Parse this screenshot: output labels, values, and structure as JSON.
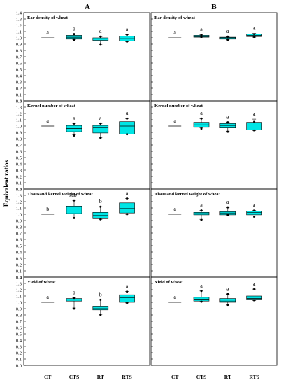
{
  "figure": {
    "column_labels": [
      "A",
      "B"
    ],
    "y_axis_title": "Equivalent ratios",
    "x_categories": [
      "CT",
      "CTS",
      "RT",
      "RTS"
    ],
    "box_fill": "#00e5e5"
  },
  "chart_data": [
    {
      "type": "box",
      "column": "A",
      "title": "Ear density of wheat",
      "categories": [
        "CT",
        "CTS",
        "RT",
        "RTS"
      ],
      "ylim": [
        0.0,
        1.4
      ],
      "yticks": [
        0.0,
        0.1,
        0.2,
        0.3,
        0.4,
        0.5,
        0.6,
        0.7,
        0.8,
        0.9,
        1.0,
        1.1,
        1.2,
        1.3,
        1.4
      ],
      "boxes": [
        {
          "category": "CT",
          "line": 1.0,
          "letter": "a"
        },
        {
          "category": "CTS",
          "whisker_low": 0.97,
          "q1": 0.98,
          "median": 1.01,
          "q3": 1.04,
          "whisker_high": 1.06,
          "outliers": [
            0.97,
            1.06
          ],
          "letter": "a"
        },
        {
          "category": "RT",
          "whisker_low": 0.89,
          "q1": 0.96,
          "median": 0.99,
          "q3": 1.0,
          "whisker_high": 1.02,
          "outliers": [
            0.89,
            1.02
          ],
          "letter": "a"
        },
        {
          "category": "RTS",
          "whisker_low": 0.94,
          "q1": 0.95,
          "median": 0.99,
          "q3": 1.03,
          "whisker_high": 1.05,
          "outliers": [
            0.94,
            1.05
          ],
          "letter": "a"
        }
      ]
    },
    {
      "type": "box",
      "column": "B",
      "title": "Ear density of wheat",
      "categories": [
        "CT",
        "CTS",
        "RT",
        "RTS"
      ],
      "ylim": [
        0.0,
        1.4
      ],
      "yticks": [
        0.0,
        0.1,
        0.2,
        0.3,
        0.4,
        0.5,
        0.6,
        0.7,
        0.8,
        0.9,
        1.0,
        1.1,
        1.2,
        1.3,
        1.4
      ],
      "boxes": [
        {
          "category": "CT",
          "line": 1.0,
          "letter": "a"
        },
        {
          "category": "CTS",
          "whisker_low": 1.01,
          "q1": 1.01,
          "median": 1.02,
          "q3": 1.04,
          "whisker_high": 1.05,
          "outliers": [
            1.01,
            1.04
          ],
          "letter": "a"
        },
        {
          "category": "RT",
          "whisker_low": 0.97,
          "q1": 0.98,
          "median": 1.0,
          "q3": 1.01,
          "whisker_high": 1.02,
          "outliers": [
            0.97,
            1.02
          ],
          "letter": "a"
        },
        {
          "category": "RTS",
          "whisker_low": 1.01,
          "q1": 1.02,
          "median": 1.04,
          "q3": 1.06,
          "whisker_high": 1.07,
          "outliers": [
            1.01,
            1.06
          ],
          "letter": "a"
        }
      ]
    },
    {
      "type": "box",
      "column": "A",
      "title": "Kernel number of wheat",
      "categories": [
        "CT",
        "CTS",
        "RT",
        "RTS"
      ],
      "ylim": [
        0.0,
        1.4
      ],
      "yticks": [
        0.0,
        0.1,
        0.2,
        0.3,
        0.4,
        0.5,
        0.6,
        0.7,
        0.8,
        0.9,
        1.0,
        1.1,
        1.2,
        1.3,
        1.4
      ],
      "boxes": [
        {
          "category": "CT",
          "line": 1.0,
          "letter": "a"
        },
        {
          "category": "CTS",
          "whisker_low": 0.86,
          "q1": 0.91,
          "median": 0.96,
          "q3": 1.01,
          "whisker_high": 1.04,
          "outliers": [
            0.85,
            1.04
          ],
          "letter": "a"
        },
        {
          "category": "RT",
          "whisker_low": 0.82,
          "q1": 0.89,
          "median": 0.97,
          "q3": 1.01,
          "whisker_high": 1.04,
          "outliers": [
            0.81,
            1.04
          ],
          "letter": "a"
        },
        {
          "category": "RTS",
          "whisker_low": 0.87,
          "q1": 0.87,
          "median": 1.0,
          "q3": 1.07,
          "whisker_high": 1.12,
          "outliers": [
            0.87,
            1.12
          ],
          "letter": "a"
        }
      ]
    },
    {
      "type": "box",
      "column": "B",
      "title": "Kernel number of wheat",
      "categories": [
        "CT",
        "CTS",
        "RT",
        "RTS"
      ],
      "ylim": [
        0.0,
        1.4
      ],
      "yticks": [
        0.0,
        0.1,
        0.2,
        0.3,
        0.4,
        0.5,
        0.6,
        0.7,
        0.8,
        0.9,
        1.0,
        1.1,
        1.2,
        1.3,
        1.4
      ],
      "boxes": [
        {
          "category": "CT",
          "line": 1.0,
          "letter": "a"
        },
        {
          "category": "CTS",
          "whisker_low": 0.97,
          "q1": 0.98,
          "median": 1.02,
          "q3": 1.06,
          "whisker_high": 1.12,
          "outliers": [
            0.96,
            1.12
          ],
          "letter": "a"
        },
        {
          "category": "RT",
          "whisker_low": 0.92,
          "q1": 0.97,
          "median": 1.01,
          "q3": 1.04,
          "whisker_high": 1.06,
          "outliers": [
            0.91,
            1.06
          ],
          "letter": "a"
        },
        {
          "category": "RTS",
          "whisker_low": 0.93,
          "q1": 0.94,
          "median": 1.05,
          "q3": 1.06,
          "whisker_high": 1.11,
          "outliers": [
            0.93,
            1.07
          ],
          "letter": "a"
        }
      ]
    },
    {
      "type": "box",
      "column": "A",
      "title": "Thousand kernel weight of wheat",
      "categories": [
        "CT",
        "CTS",
        "RT",
        "RTS"
      ],
      "ylim": [
        0.0,
        1.4
      ],
      "yticks": [
        0.0,
        0.1,
        0.2,
        0.3,
        0.4,
        0.5,
        0.6,
        0.7,
        0.8,
        0.9,
        1.0,
        1.1,
        1.2,
        1.3,
        1.4
      ],
      "boxes": [
        {
          "category": "CT",
          "line": 1.0,
          "letter": "b"
        },
        {
          "category": "CTS",
          "whisker_low": 0.94,
          "q1": 1.01,
          "median": 1.05,
          "q3": 1.13,
          "whisker_high": 1.22,
          "outliers": [
            0.94,
            1.22
          ],
          "letter": "ab"
        },
        {
          "category": "RT",
          "whisker_low": 0.92,
          "q1": 0.93,
          "median": 0.98,
          "q3": 1.03,
          "whisker_high": 1.12,
          "outliers": [
            0.92,
            1.12
          ],
          "letter": "b"
        },
        {
          "category": "RTS",
          "whisker_low": 1.0,
          "q1": 1.02,
          "median": 1.09,
          "q3": 1.18,
          "whisker_high": 1.25,
          "outliers": [
            1.0,
            1.25
          ],
          "letter": "a"
        }
      ]
    },
    {
      "type": "box",
      "column": "B",
      "title": "Thousand kernel weight of wheat",
      "categories": [
        "CT",
        "CTS",
        "RT",
        "RTS"
      ],
      "ylim": [
        0.0,
        1.4
      ],
      "yticks": [
        0.0,
        0.1,
        0.2,
        0.3,
        0.4,
        0.5,
        0.6,
        0.7,
        0.8,
        0.9,
        1.0,
        1.1,
        1.2,
        1.3,
        1.4
      ],
      "boxes": [
        {
          "category": "CT",
          "line": 1.0,
          "letter": "a"
        },
        {
          "category": "CTS",
          "whisker_low": 0.92,
          "q1": 0.99,
          "median": 1.01,
          "q3": 1.03,
          "whisker_high": 1.06,
          "outliers": [
            0.91,
            1.06
          ],
          "letter": "a"
        },
        {
          "category": "RT",
          "whisker_low": 0.99,
          "q1": 0.99,
          "median": 1.02,
          "q3": 1.04,
          "whisker_high": 1.11,
          "outliers": [
            0.99,
            1.11
          ],
          "letter": "a"
        },
        {
          "category": "RTS",
          "whisker_low": 0.97,
          "q1": 0.99,
          "median": 1.03,
          "q3": 1.05,
          "whisker_high": 1.06,
          "outliers": [
            0.96,
            1.06
          ],
          "letter": "a"
        }
      ]
    },
    {
      "type": "box",
      "column": "A",
      "title": "Yield of wheat",
      "categories": [
        "CT",
        "CTS",
        "RT",
        "RTS"
      ],
      "ylim": [
        0.0,
        1.4
      ],
      "yticks": [
        0.0,
        0.1,
        0.2,
        0.3,
        0.4,
        0.5,
        0.6,
        0.7,
        0.8,
        0.9,
        1.0,
        1.1,
        1.2,
        1.3,
        1.4
      ],
      "boxes": [
        {
          "category": "CT",
          "line": 1.0,
          "letter": "a"
        },
        {
          "category": "CTS",
          "whisker_low": 0.91,
          "q1": 1.02,
          "median": 1.04,
          "q3": 1.06,
          "whisker_high": 1.07,
          "outliers": [
            0.9,
            1.07
          ],
          "letter": "a"
        },
        {
          "category": "RT",
          "whisker_low": 0.81,
          "q1": 0.88,
          "median": 0.9,
          "q3": 0.94,
          "whisker_high": 1.04,
          "outliers": [
            0.8,
            1.04
          ],
          "letter": "b"
        },
        {
          "category": "RTS",
          "whisker_low": 0.99,
          "q1": 1.0,
          "median": 1.07,
          "q3": 1.12,
          "whisker_high": 1.17,
          "outliers": [
            0.99,
            1.17
          ],
          "letter": "a"
        }
      ]
    },
    {
      "type": "box",
      "column": "B",
      "title": "Yield of wheat",
      "categories": [
        "CT",
        "CTS",
        "RT",
        "RTS"
      ],
      "ylim": [
        0.0,
        1.4
      ],
      "yticks": [
        0.0,
        0.1,
        0.2,
        0.3,
        0.4,
        0.5,
        0.6,
        0.7,
        0.8,
        0.9,
        1.0,
        1.1,
        1.2,
        1.3,
        1.4
      ],
      "boxes": [
        {
          "category": "CT",
          "line": 1.0,
          "letter": "a"
        },
        {
          "category": "CTS",
          "whisker_low": 1.01,
          "q1": 1.02,
          "median": 1.05,
          "q3": 1.08,
          "whisker_high": 1.18,
          "outliers": [
            1.01,
            1.18
          ],
          "letter": "a"
        },
        {
          "category": "RT",
          "whisker_low": 0.97,
          "q1": 1.0,
          "median": 1.02,
          "q3": 1.06,
          "whisker_high": 1.13,
          "outliers": [
            0.96,
            1.13
          ],
          "letter": "a"
        },
        {
          "category": "RTS",
          "whisker_low": 1.03,
          "q1": 1.05,
          "median": 1.06,
          "q3": 1.1,
          "whisker_high": 1.21,
          "outliers": [
            1.03,
            1.21
          ],
          "letter": "a"
        }
      ]
    }
  ]
}
